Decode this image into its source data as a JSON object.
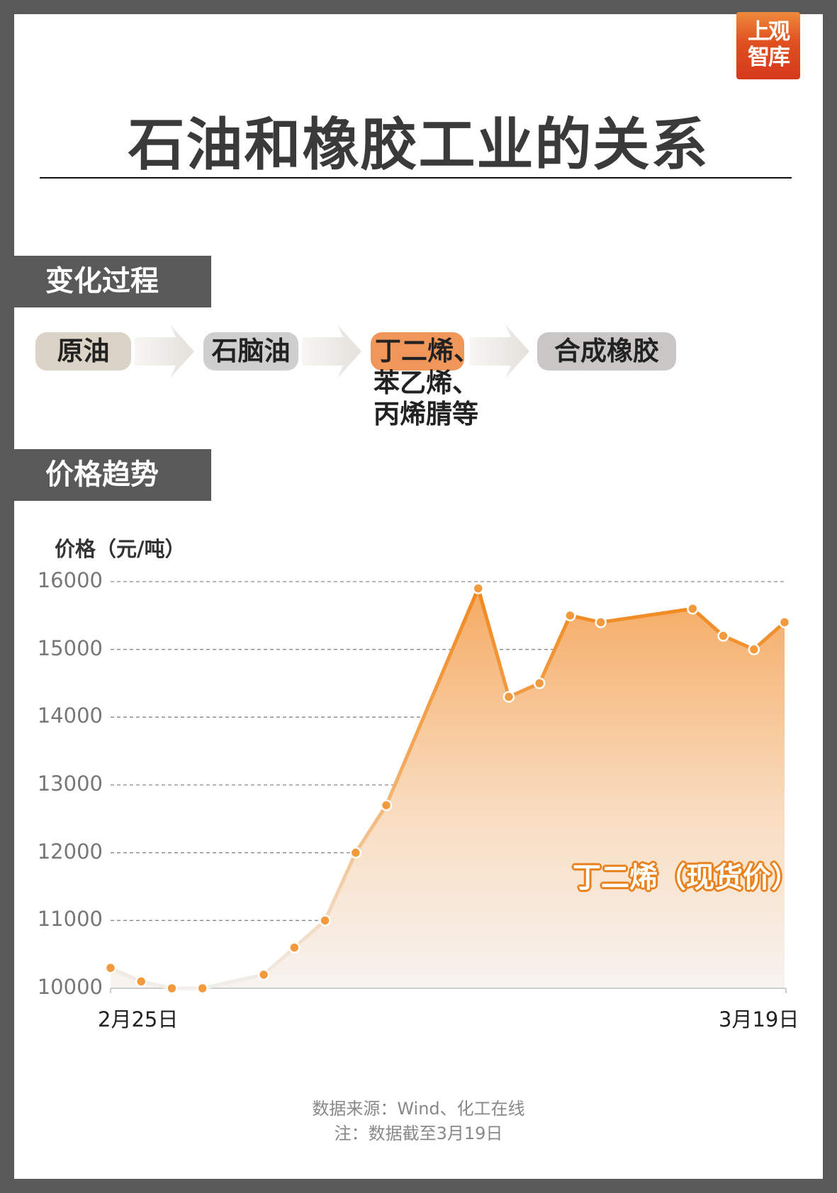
{
  "logo": {
    "line1": "上观",
    "line2": "智库"
  },
  "title": "石油和橡胶工业的关系",
  "sections": {
    "process": "变化过程",
    "trend": "价格趋势"
  },
  "process": {
    "steps": [
      "原油",
      "石脑油",
      "丁二烯、",
      "合成橡胶"
    ],
    "step3_extra": [
      "苯乙烯、",
      "丙烯腈等"
    ],
    "colors": {
      "crude": "#dcd3c7",
      "naphtha": "#cfcfcf",
      "butadiene": "#f0965a",
      "rubber": "#c9c6c6"
    }
  },
  "chart_data": {
    "type": "area",
    "ylabel": "价格（元/吨）",
    "ylim": [
      10000,
      16000
    ],
    "yticks": [
      "16000",
      "15000",
      "14000",
      "13000",
      "12000",
      "11000",
      "10000"
    ],
    "xlim": [
      "2月25日",
      "3月19日"
    ],
    "xtick_labels": [
      "2月25日",
      "3月19日"
    ],
    "grid": "horizontal dashed",
    "series": [
      {
        "name": "丁二烯（现货价）",
        "color": "#f0891e",
        "x": [
          "02-25",
          "02-26",
          "02-27",
          "02-28",
          "03-02",
          "03-03",
          "03-04",
          "03-05",
          "03-06",
          "03-09",
          "03-10",
          "03-11",
          "03-12",
          "03-13",
          "03-16",
          "03-17",
          "03-18",
          "03-19"
        ],
        "values": [
          10300,
          10100,
          10000,
          10000,
          10200,
          10600,
          11000,
          12000,
          12700,
          15900,
          14300,
          14500,
          15500,
          15400,
          15600,
          15200,
          15000,
          15400
        ]
      }
    ]
  },
  "footer": {
    "source": "数据来源：Wind、化工在线",
    "note": "注：数据截至3月19日"
  }
}
